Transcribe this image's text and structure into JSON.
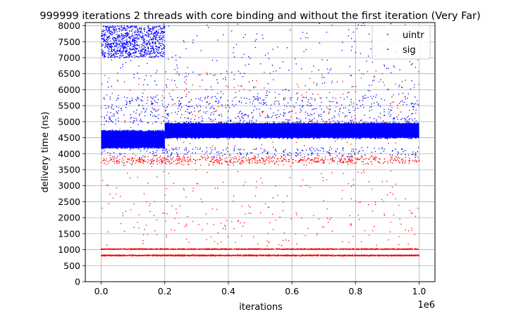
{
  "chart_data": {
    "type": "scatter",
    "title": "999999 iterations 2 threads with core binding and without the first iteration (Very Far)",
    "xlabel": "iterations",
    "ylabel": "delivery time (ns)",
    "x_offset_text": "1e6",
    "x_scale": 1000000,
    "xlim": [
      -50000,
      1050000
    ],
    "ylim": [
      0,
      8100
    ],
    "x_ticks": [
      0,
      200000,
      400000,
      600000,
      800000,
      1000000
    ],
    "x_tick_labels": [
      "0.0",
      "0.2",
      "0.4",
      "0.6",
      "0.8",
      "1.0"
    ],
    "y_ticks": [
      0,
      500,
      1000,
      1500,
      2000,
      2500,
      3000,
      3500,
      4000,
      4500,
      5000,
      5500,
      6000,
      6500,
      7000,
      7500,
      8000
    ],
    "y_tick_labels": [
      "0",
      "500",
      "1000",
      "1500",
      "2000",
      "2500",
      "3000",
      "3500",
      "4000",
      "4500",
      "5000",
      "5500",
      "6000",
      "6500",
      "7000",
      "7500",
      "8000"
    ],
    "grid": true,
    "legend_position": "top-right",
    "series": [
      {
        "name": "uintr",
        "color": "#ff0000",
        "x_range": [
          0,
          999999
        ],
        "bands": [
          {
            "y": 820,
            "spread": 30,
            "density": "very high"
          },
          {
            "y": 1020,
            "spread": 25,
            "density": "high"
          },
          {
            "y": 3800,
            "spread": 250,
            "density": "medium"
          },
          {
            "y_range": [
              1100,
              3500
            ],
            "density": "sparse"
          },
          {
            "y_range": [
              4200,
              6600
            ],
            "density": "sparse"
          }
        ]
      },
      {
        "name": "sig",
        "color": "#0000ff",
        "x_range": [
          0,
          999999
        ],
        "bands": [
          {
            "x_range": [
              0,
              200000
            ],
            "y_range": [
              4200,
              4700
            ],
            "density": "solid"
          },
          {
            "x_range": [
              200000,
              999999
            ],
            "y_range": [
              4500,
              4950
            ],
            "density": "solid"
          },
          {
            "x_range": [
              0,
              200000
            ],
            "y_range": [
              7000,
              8000
            ],
            "density": "high"
          },
          {
            "y_range": [
              4900,
              5800
            ],
            "density": "medium"
          },
          {
            "y_range": [
              5800,
              8100
            ],
            "density": "sparse"
          },
          {
            "y_range": [
              3900,
              4200
            ],
            "density": "sparse"
          }
        ]
      }
    ]
  }
}
